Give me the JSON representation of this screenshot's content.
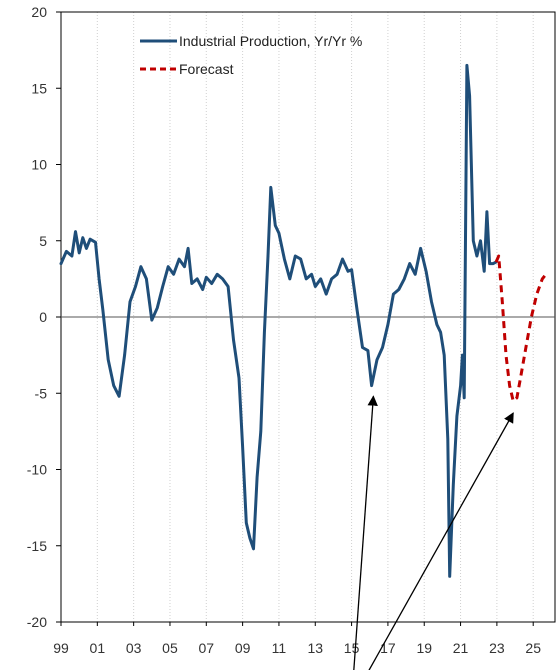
{
  "chart_data": {
    "type": "line",
    "xlabel": "",
    "ylabel": "",
    "xlim": [
      1999,
      2026.2
    ],
    "ylim": [
      -20,
      20
    ],
    "x_ticks": [
      1999,
      2001,
      2003,
      2005,
      2007,
      2009,
      2011,
      2013,
      2015,
      2017,
      2019,
      2021,
      2023,
      2025
    ],
    "x_tick_labels": [
      "99",
      "01",
      "03",
      "05",
      "07",
      "09",
      "11",
      "13",
      "15",
      "17",
      "19",
      "21",
      "23",
      "25"
    ],
    "y_ticks": [
      -20,
      -15,
      -10,
      -5,
      0,
      5,
      10,
      15,
      20
    ],
    "y_tick_labels": [
      "-20",
      "-15",
      "-10",
      "-5",
      "0",
      "5",
      "10",
      "15",
      "20"
    ],
    "grid": true,
    "legend_position": "top-center",
    "series": [
      {
        "name": "Industrial Production, Yr/Yr %",
        "color": "#1f4e79",
        "style": "solid",
        "points": [
          [
            1999.0,
            3.5
          ],
          [
            1999.3,
            4.3
          ],
          [
            1999.6,
            4.0
          ],
          [
            1999.8,
            5.6
          ],
          [
            2000.0,
            4.2
          ],
          [
            2000.2,
            5.2
          ],
          [
            2000.4,
            4.5
          ],
          [
            2000.6,
            5.1
          ],
          [
            2000.9,
            4.9
          ],
          [
            2001.1,
            2.5
          ],
          [
            2001.3,
            0.5
          ],
          [
            2001.6,
            -2.8
          ],
          [
            2001.9,
            -4.5
          ],
          [
            2002.2,
            -5.2
          ],
          [
            2002.5,
            -2.5
          ],
          [
            2002.8,
            1.0
          ],
          [
            2003.1,
            2.0
          ],
          [
            2003.4,
            3.3
          ],
          [
            2003.7,
            2.5
          ],
          [
            2004.0,
            -0.2
          ],
          [
            2004.3,
            0.6
          ],
          [
            2004.6,
            2.0
          ],
          [
            2004.9,
            3.3
          ],
          [
            2005.2,
            2.8
          ],
          [
            2005.5,
            3.8
          ],
          [
            2005.8,
            3.3
          ],
          [
            2006.0,
            4.5
          ],
          [
            2006.2,
            2.2
          ],
          [
            2006.5,
            2.5
          ],
          [
            2006.8,
            1.8
          ],
          [
            2007.0,
            2.6
          ],
          [
            2007.3,
            2.2
          ],
          [
            2007.6,
            2.8
          ],
          [
            2007.9,
            2.5
          ],
          [
            2008.2,
            2.0
          ],
          [
            2008.5,
            -1.5
          ],
          [
            2008.8,
            -4.0
          ],
          [
            2009.0,
            -8.5
          ],
          [
            2009.2,
            -13.5
          ],
          [
            2009.4,
            -14.5
          ],
          [
            2009.6,
            -15.2
          ],
          [
            2009.8,
            -10.5
          ],
          [
            2010.0,
            -7.5
          ],
          [
            2010.2,
            -1.0
          ],
          [
            2010.4,
            4.0
          ],
          [
            2010.55,
            8.5
          ],
          [
            2010.8,
            6.0
          ],
          [
            2011.0,
            5.5
          ],
          [
            2011.3,
            3.8
          ],
          [
            2011.6,
            2.5
          ],
          [
            2011.9,
            4.0
          ],
          [
            2012.2,
            3.8
          ],
          [
            2012.5,
            2.5
          ],
          [
            2012.8,
            2.8
          ],
          [
            2013.0,
            2.0
          ],
          [
            2013.3,
            2.5
          ],
          [
            2013.6,
            1.5
          ],
          [
            2013.9,
            2.5
          ],
          [
            2014.2,
            2.8
          ],
          [
            2014.5,
            3.8
          ],
          [
            2014.8,
            3.0
          ],
          [
            2015.0,
            3.1
          ],
          [
            2015.3,
            0.5
          ],
          [
            2015.6,
            -2.0
          ],
          [
            2015.9,
            -2.2
          ],
          [
            2016.1,
            -4.5
          ],
          [
            2016.4,
            -2.8
          ],
          [
            2016.7,
            -2.0
          ],
          [
            2017.0,
            -0.5
          ],
          [
            2017.3,
            1.5
          ],
          [
            2017.6,
            1.8
          ],
          [
            2017.9,
            2.5
          ],
          [
            2018.2,
            3.5
          ],
          [
            2018.5,
            2.8
          ],
          [
            2018.8,
            4.5
          ],
          [
            2019.1,
            3.0
          ],
          [
            2019.4,
            1.0
          ],
          [
            2019.7,
            -0.5
          ],
          [
            2019.9,
            -1.0
          ],
          [
            2020.1,
            -2.5
          ],
          [
            2020.3,
            -8.0
          ],
          [
            2020.4,
            -17.0
          ],
          [
            2020.6,
            -11.0
          ],
          [
            2020.8,
            -6.5
          ],
          [
            2021.0,
            -4.5
          ],
          [
            2021.1,
            -2.5
          ],
          [
            2021.2,
            -5.3
          ],
          [
            2021.35,
            16.5
          ],
          [
            2021.5,
            14.5
          ],
          [
            2021.7,
            5.0
          ],
          [
            2021.9,
            4.0
          ],
          [
            2022.1,
            5.0
          ],
          [
            2022.3,
            3.0
          ],
          [
            2022.45,
            6.9
          ],
          [
            2022.6,
            3.5
          ],
          [
            2022.8,
            3.5
          ],
          [
            2022.95,
            3.6
          ]
        ]
      },
      {
        "name": "Forecast",
        "color": "#c00000",
        "style": "dashed",
        "points": [
          [
            2022.95,
            3.6
          ],
          [
            2023.1,
            4.0
          ],
          [
            2023.3,
            1.0
          ],
          [
            2023.5,
            -2.5
          ],
          [
            2023.7,
            -4.5
          ],
          [
            2023.9,
            -5.5
          ],
          [
            2024.1,
            -5.3
          ],
          [
            2024.3,
            -4.0
          ],
          [
            2024.6,
            -2.0
          ],
          [
            2024.9,
            0.0
          ],
          [
            2025.2,
            1.5
          ],
          [
            2025.5,
            2.5
          ],
          [
            2025.7,
            2.8
          ]
        ]
      }
    ],
    "annotations": [
      {
        "type": "arrow",
        "from": [
          2015.0,
          -25.2
        ],
        "to": [
          2016.2,
          -5.2
        ]
      },
      {
        "type": "arrow",
        "from": [
          2015.0,
          -25.2
        ],
        "to": [
          2023.9,
          -6.3
        ]
      }
    ]
  }
}
